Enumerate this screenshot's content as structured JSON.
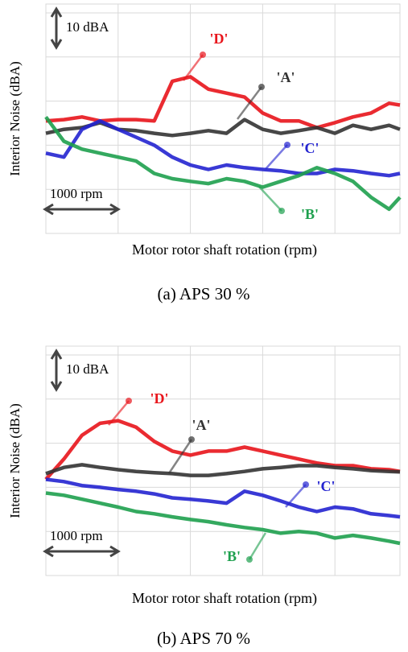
{
  "chart_data": [
    {
      "type": "line",
      "ylabel": "Interior Noise (dBA)",
      "xlabel": "Motor rotor shaft rotation (rpm)",
      "caption": "(a)  APS  30 %",
      "y_scale_label": "10 dBA",
      "x_scale_label": "1000 rpm",
      "xlim": [
        0,
        4900
      ],
      "ylim": [
        0,
        52
      ],
      "xticks": [
        1000,
        2000,
        3000,
        4000
      ],
      "yticks": [
        10,
        20,
        30,
        40,
        50
      ],
      "grid": true,
      "x": [
        0,
        250,
        500,
        750,
        1000,
        1250,
        1500,
        1750,
        2000,
        2250,
        2500,
        2750,
        3000,
        3250,
        3500,
        3750,
        4000,
        4250,
        4500,
        4750,
        4900
      ],
      "series": [
        {
          "name": "'D'",
          "color": "#e8141b",
          "values": [
            25.5,
            25.8,
            26.4,
            25.5,
            25.8,
            25.8,
            25.5,
            34.5,
            35.5,
            32.7,
            31.8,
            30.9,
            27.3,
            25.5,
            25.5,
            24,
            25.1,
            26.4,
            27.3,
            29.5,
            29.1
          ]
        },
        {
          "name": "'A'",
          "color": "#333333",
          "values": [
            22.7,
            23.6,
            24,
            25.1,
            23.6,
            23.3,
            22.7,
            22.2,
            22.7,
            23.3,
            22.7,
            25.8,
            23.6,
            22.7,
            23.3,
            24,
            22.7,
            24.5,
            23.6,
            24.5,
            23.6
          ]
        },
        {
          "name": "'C'",
          "color": "#2323d0",
          "values": [
            18.2,
            17.3,
            23.6,
            25.5,
            23.6,
            21.8,
            20,
            17.3,
            15.5,
            14.5,
            15.5,
            14.9,
            14.5,
            14.2,
            13.6,
            13.6,
            14.5,
            14.2,
            13.6,
            13.1,
            13.6
          ]
        },
        {
          "name": "'B'",
          "color": "#1ea04e",
          "values": [
            26.4,
            20.9,
            19.1,
            18.2,
            17.3,
            16.4,
            13.6,
            12.4,
            11.8,
            11.3,
            12.4,
            11.8,
            10.5,
            11.8,
            13.1,
            14.9,
            13.6,
            11.8,
            8.2,
            5.5,
            8.2
          ]
        }
      ]
    },
    {
      "type": "line",
      "ylabel": "Interior Noise (dBA)",
      "xlabel": "Motor rotor shaft rotation (rpm)",
      "caption": "(b)  APS  70 %",
      "y_scale_label": "10 dBA",
      "x_scale_label": "1000 rpm",
      "xlim": [
        0,
        4900
      ],
      "ylim": [
        0,
        52
      ],
      "xticks": [
        1000,
        2000,
        3000,
        4000
      ],
      "yticks": [
        10,
        20,
        30,
        40,
        50
      ],
      "grid": true,
      "x": [
        0,
        250,
        500,
        750,
        1000,
        1250,
        1500,
        1750,
        2000,
        2250,
        2500,
        2750,
        3000,
        3250,
        3500,
        3750,
        4000,
        4250,
        4500,
        4750,
        4900
      ],
      "series": [
        {
          "name": "'D'",
          "color": "#e8141b",
          "values": [
            21.8,
            26.4,
            31.8,
            34.5,
            35.1,
            33.6,
            30.4,
            28.2,
            27.3,
            28.2,
            28.2,
            29.1,
            28.2,
            27.3,
            26.4,
            25.5,
            24.9,
            24.9,
            24.2,
            24,
            23.6
          ]
        },
        {
          "name": "'A'",
          "color": "#333333",
          "values": [
            23.1,
            24.5,
            25.1,
            24.5,
            24,
            23.6,
            23.3,
            23.1,
            22.7,
            22.7,
            23.1,
            23.6,
            24.2,
            24.5,
            24.9,
            24.9,
            24.5,
            24.2,
            23.8,
            23.6,
            23.5
          ]
        },
        {
          "name": "'C'",
          "color": "#2323d0",
          "values": [
            21.8,
            21.3,
            20.4,
            20,
            19.5,
            19.1,
            18.5,
            17.6,
            17.3,
            16.9,
            16.4,
            19.1,
            18.2,
            16.9,
            15.5,
            14.5,
            15.5,
            15.1,
            14,
            13.6,
            13.3
          ]
        },
        {
          "name": "'B'",
          "color": "#1ea04e",
          "values": [
            18.7,
            18.2,
            17.3,
            16.4,
            15.5,
            14.5,
            14,
            13.3,
            12.7,
            12.2,
            11.5,
            10.9,
            10.4,
            9.6,
            10,
            9.6,
            8.5,
            9.1,
            8.5,
            7.8,
            7.3
          ]
        }
      ]
    }
  ]
}
